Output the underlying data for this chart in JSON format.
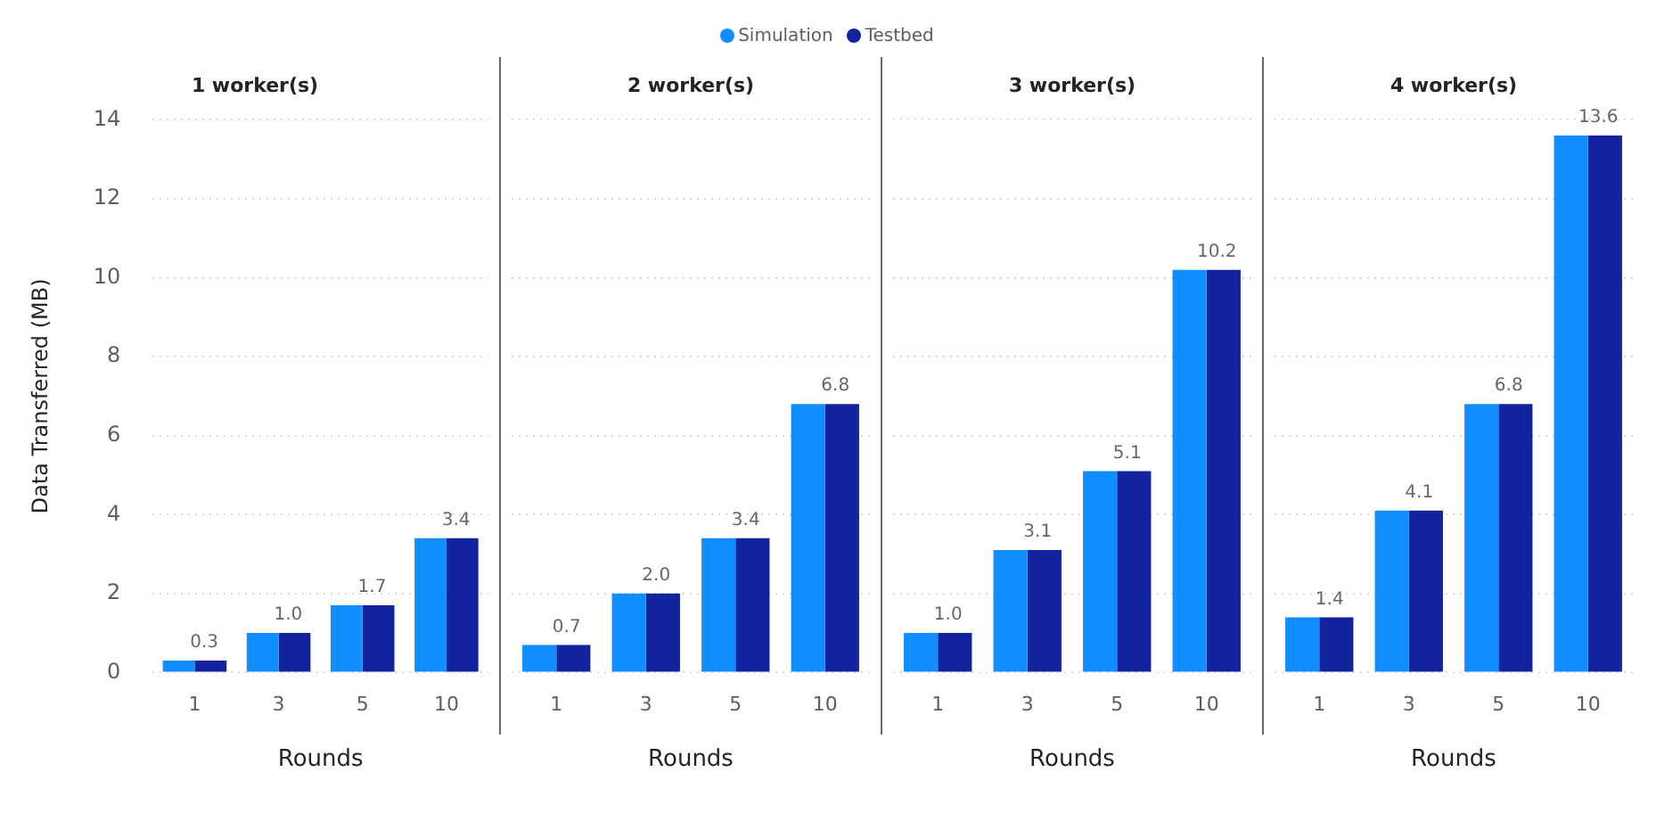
{
  "chart_data": [
    {
      "type": "bar",
      "title": "1 worker(s)",
      "xlabel": "Rounds",
      "ylabel": "Data Transferred (MB)",
      "categories": [
        "1",
        "3",
        "5",
        "10"
      ],
      "legend": "top",
      "grid": "y",
      "ylim": [
        0,
        14
      ],
      "yticks": [
        0,
        2,
        4,
        6,
        8,
        10,
        12,
        14
      ],
      "series": [
        {
          "name": "Simulation",
          "color": "#118dff",
          "values": [
            0.3,
            1.0,
            1.7,
            3.4
          ]
        },
        {
          "name": "Testbed",
          "color": "#12239e",
          "values": [
            0.3,
            1.0,
            1.7,
            3.4
          ],
          "value_labels": [
            "0.3",
            "1.0",
            "1.7",
            "3.4"
          ]
        }
      ]
    },
    {
      "type": "bar",
      "title": "2 worker(s)",
      "xlabel": "Rounds",
      "categories": [
        "1",
        "3",
        "5",
        "10"
      ],
      "grid": "y",
      "ylim": [
        0,
        14
      ],
      "yticks": [
        0,
        2,
        4,
        6,
        8,
        10,
        12,
        14
      ],
      "tick_labels": "x",
      "series": [
        {
          "color": "#118dff",
          "values": [
            0.7,
            2.0,
            3.4,
            6.8
          ]
        },
        {
          "color": "#12239e",
          "values": [
            0.7,
            2.0,
            3.4,
            6.8
          ],
          "value_labels": [
            "0.7",
            "2.0",
            "3.4",
            "6.8"
          ]
        }
      ]
    },
    {
      "type": "bar",
      "title": "3 worker(s)",
      "xlabel": "Rounds",
      "categories": [
        "1",
        "3",
        "5",
        "10"
      ],
      "grid": "y",
      "ylim": [
        0,
        14
      ],
      "yticks": [
        0,
        2,
        4,
        6,
        8,
        10,
        12,
        14
      ],
      "tick_labels": "x",
      "series": [
        {
          "color": "#118dff",
          "values": [
            1.0,
            3.1,
            5.1,
            10.2
          ]
        },
        {
          "color": "#12239e",
          "values": [
            1.0,
            3.1,
            5.1,
            10.2
          ],
          "value_labels": [
            "1.0",
            "3.1",
            "5.1",
            "10.2"
          ]
        }
      ]
    },
    {
      "type": "bar",
      "title": "4 worker(s)",
      "xlabel": "Rounds",
      "categories": [
        "1",
        "3",
        "5",
        "10"
      ],
      "grid": "y",
      "ylim": [
        0,
        14
      ],
      "yticks": [
        0,
        2,
        4,
        6,
        8,
        10,
        12,
        14
      ],
      "tick_labels": "x",
      "series": [
        {
          "color": "#118dff",
          "values": [
            1.4,
            4.1,
            6.8,
            13.6
          ]
        },
        {
          "color": "#12239e",
          "values": [
            1.4,
            4.1,
            6.8,
            13.6
          ],
          "value_labels": [
            "1.4",
            "4.1",
            "6.8",
            "13.6"
          ]
        }
      ]
    }
  ]
}
